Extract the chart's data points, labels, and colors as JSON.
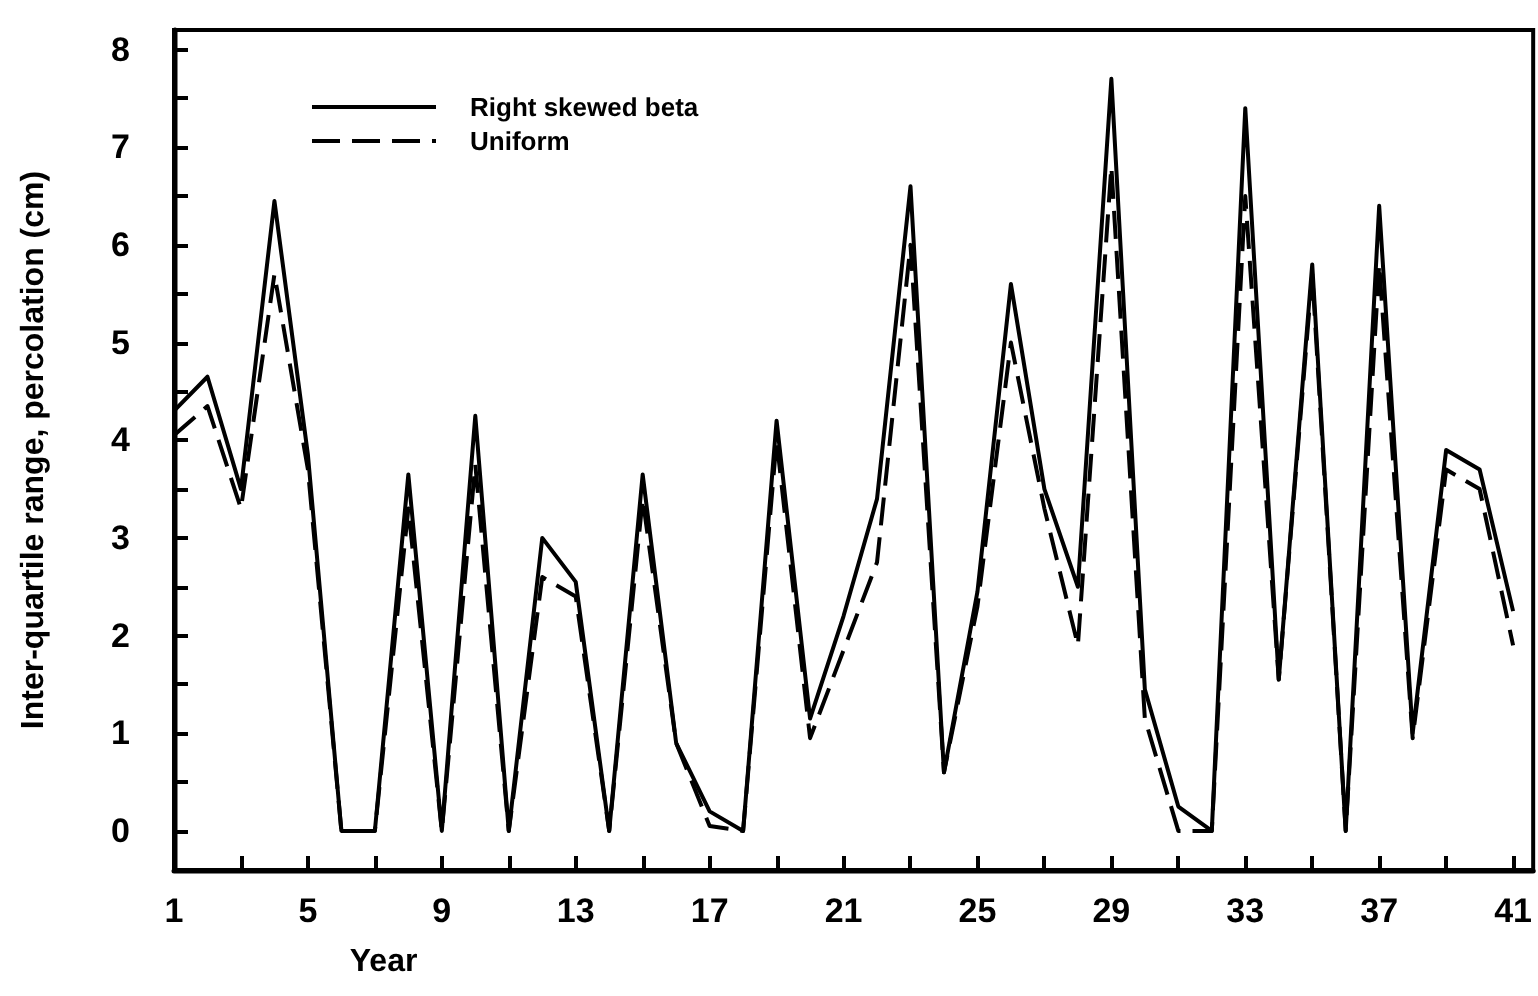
{
  "chart_data": {
    "type": "line",
    "xlabel": "Year",
    "ylabel": "Inter-quartile range, percolation (cm)",
    "x": [
      1,
      2,
      3,
      4,
      5,
      6,
      7,
      8,
      9,
      10,
      11,
      12,
      13,
      14,
      15,
      16,
      17,
      18,
      19,
      20,
      21,
      22,
      23,
      24,
      25,
      26,
      27,
      28,
      29,
      30,
      31,
      32,
      33,
      34,
      35,
      36,
      37,
      38,
      39,
      40,
      41
    ],
    "series": [
      {
        "name": "Right skewed beta",
        "color": "#000000",
        "line_style": "solid",
        "values": [
          4.3,
          4.65,
          3.5,
          6.45,
          3.85,
          0,
          0,
          3.65,
          0,
          4.25,
          0,
          3.0,
          2.55,
          0,
          3.65,
          0.9,
          0.2,
          0,
          4.2,
          1.15,
          2.2,
          3.4,
          6.6,
          0.6,
          2.45,
          5.6,
          3.5,
          2.5,
          7.7,
          1.45,
          0.25,
          0,
          7.4,
          1.55,
          5.8,
          0,
          6.4,
          1.0,
          3.9,
          3.7,
          2.25
        ]
      },
      {
        "name": "Uniform",
        "color": "#000000",
        "line_style": "dashed",
        "values": [
          4.05,
          4.35,
          3.3,
          5.7,
          3.7,
          0,
          0,
          3.3,
          0,
          3.75,
          0,
          2.6,
          2.4,
          0,
          3.4,
          0.9,
          0.05,
          0,
          4.0,
          0.95,
          1.85,
          2.75,
          6.0,
          0.6,
          2.3,
          5.0,
          3.3,
          1.9,
          6.8,
          1.15,
          0,
          0,
          6.5,
          1.55,
          5.7,
          0,
          5.8,
          0.95,
          3.7,
          3.5,
          1.9
        ]
      }
    ],
    "xlim": [
      1,
      41.6
    ],
    "xticks": [
      1,
      {
        "value": 3,
        "label": null
      },
      5,
      {
        "value": 7,
        "label": null
      },
      9,
      {
        "value": 11,
        "label": null
      },
      13,
      {
        "value": 15,
        "label": null
      },
      17,
      {
        "value": 19,
        "label": null
      },
      21,
      {
        "value": 23,
        "label": null
      },
      25,
      {
        "value": 27,
        "label": null
      },
      29,
      {
        "value": 31,
        "label": null
      },
      33,
      {
        "value": 35,
        "label": null
      },
      37,
      {
        "value": 39,
        "label": null
      },
      41
    ],
    "ylim": [
      -0.4,
      8.2
    ],
    "yticks": [
      0,
      {
        "value": 0.5,
        "label": null
      },
      1,
      {
        "value": 1.5,
        "label": null
      },
      2,
      {
        "value": 2.5,
        "label": null
      },
      3,
      {
        "value": 3.5,
        "label": null
      },
      4,
      {
        "value": 4.5,
        "label": null
      },
      5,
      {
        "value": 5.5,
        "label": null
      },
      6,
      {
        "value": 6.5,
        "label": null
      },
      7,
      {
        "value": 7.5,
        "label": null
      },
      8
    ],
    "grid": false,
    "legend": "top left",
    "marker": "none"
  }
}
